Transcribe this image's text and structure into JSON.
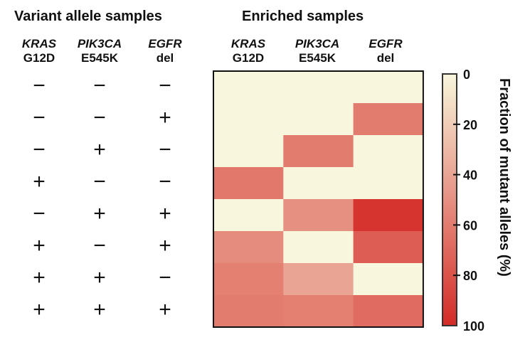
{
  "left_title": "Variant allele samples",
  "right_title": "Enriched samples",
  "columns": [
    {
      "gene": "KRAS",
      "variant": "G12D"
    },
    {
      "gene": "PIK3CA",
      "variant": "E545K"
    },
    {
      "gene": "EGFR",
      "variant": "del"
    }
  ],
  "variant_matrix": [
    [
      "−",
      "−",
      "−"
    ],
    [
      "−",
      "−",
      "+"
    ],
    [
      "−",
      "+",
      "−"
    ],
    [
      "+",
      "−",
      "−"
    ],
    [
      "−",
      "+",
      "+"
    ],
    [
      "+",
      "−",
      "+"
    ],
    [
      "+",
      "+",
      "−"
    ],
    [
      "+",
      "+",
      "+"
    ]
  ],
  "chart_data": {
    "type": "heatmap",
    "xlabels": [
      "KRAS G12D",
      "PIK3CA E545K",
      "EGFR del"
    ],
    "values": [
      [
        0,
        0,
        0
      ],
      [
        0,
        0,
        60
      ],
      [
        0,
        60,
        0
      ],
      [
        62,
        0,
        0
      ],
      [
        0,
        50,
        95
      ],
      [
        52,
        0,
        75
      ],
      [
        58,
        40,
        0
      ],
      [
        60,
        58,
        68
      ]
    ],
    "colorbar": {
      "label": "Fraction of mutant alleles (%)",
      "ticks": [
        "0",
        "20",
        "40",
        "60",
        "80",
        "100"
      ],
      "range": [
        0,
        100
      ],
      "color_min": "#f8f6dc",
      "color_max": "#d42a26"
    }
  }
}
